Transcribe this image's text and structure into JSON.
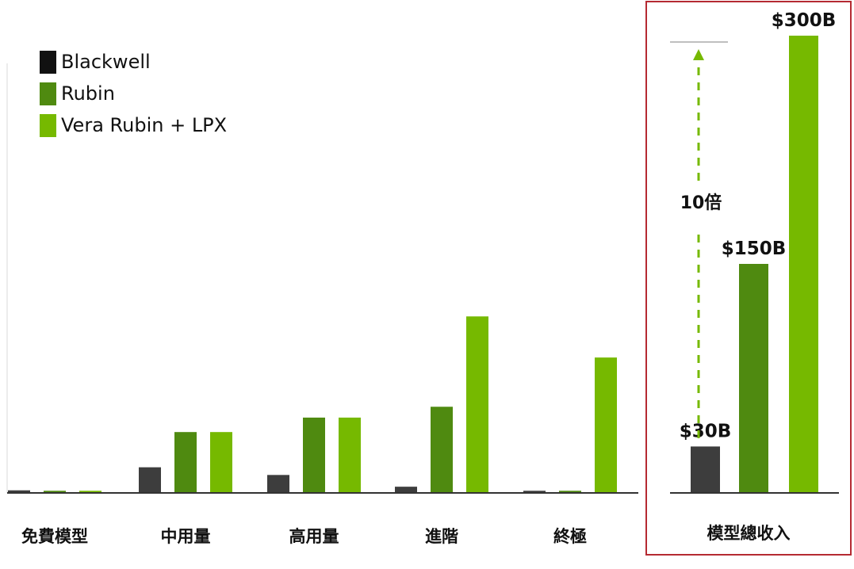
{
  "colors": {
    "blackwell": "#3d3d3d",
    "rubin": "#4f8a10",
    "vera_rubin_lpx": "#76b900",
    "frame": "#b52a32",
    "arrow": "#76b900",
    "baseline": "#333333"
  },
  "legend": [
    {
      "label": "Blackwell",
      "color": "#3d3d3d"
    },
    {
      "label": "Rubin",
      "color": "#4f8a10"
    },
    {
      "label": "Vera Rubin + LPX",
      "color": "#76b900"
    }
  ],
  "chart_data": [
    {
      "type": "bar",
      "title": "",
      "xlabel": "",
      "ylabel": "",
      "categories": [
        "免費模型",
        "中用量",
        "高用量",
        "進階",
        "終極"
      ],
      "series": [
        {
          "name": "Blackwell",
          "values": [
            0.4,
            5.5,
            3.8,
            1.2,
            0.3
          ]
        },
        {
          "name": "Rubin",
          "values": [
            0.3,
            13.3,
            16.5,
            18.9,
            0.3
          ]
        },
        {
          "name": "Vera Rubin + LPX",
          "values": [
            0.3,
            13.3,
            16.5,
            38.9,
            29.8
          ]
        }
      ],
      "ylim": [
        0,
        105
      ],
      "grid": false,
      "legend_position": "top-left"
    },
    {
      "type": "bar",
      "title": "",
      "categories": [
        "模型總收入"
      ],
      "series": [
        {
          "name": "Blackwell",
          "values": [
            30
          ],
          "label": "$30B"
        },
        {
          "name": "Rubin",
          "values": [
            150
          ],
          "label": "$150B"
        },
        {
          "name": "Vera Rubin + LPX",
          "values": [
            300
          ],
          "label": "$300B"
        }
      ],
      "annotation": "10倍",
      "ylim": [
        0,
        300
      ]
    }
  ]
}
